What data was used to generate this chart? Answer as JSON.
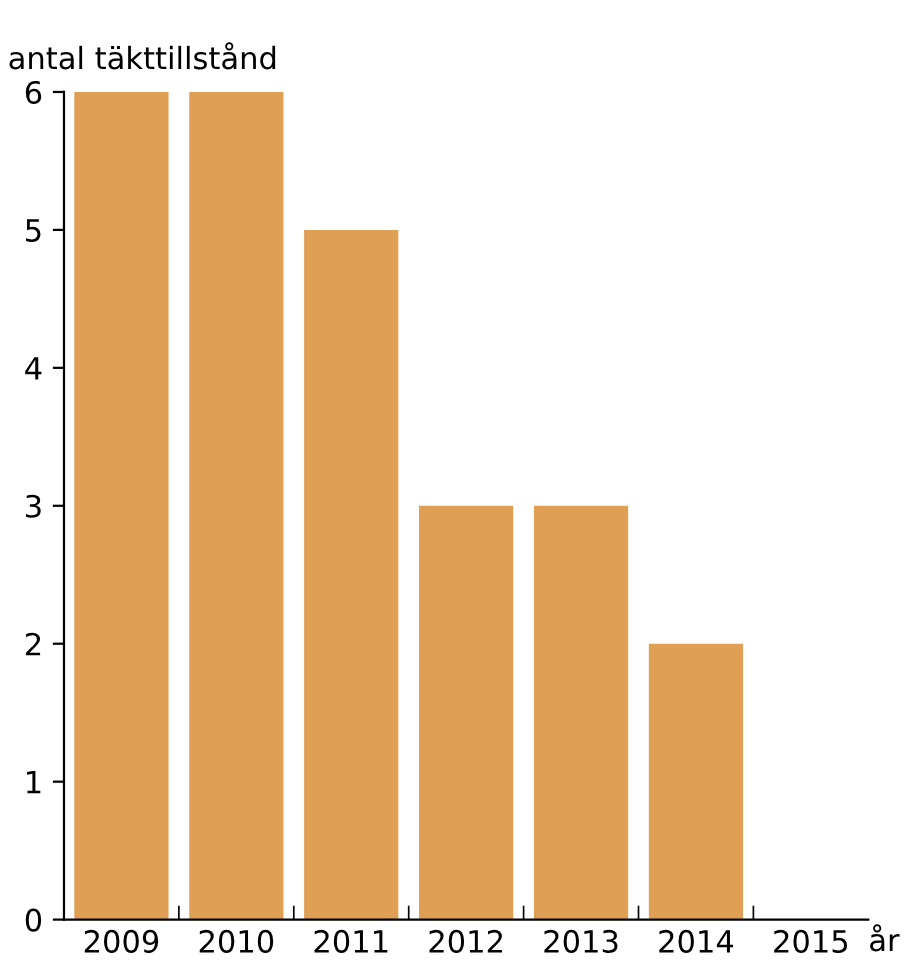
{
  "chart_data": {
    "type": "bar",
    "ylabel": "antal täkttillstånd",
    "xlabel": "år",
    "categories": [
      "2009",
      "2010",
      "2011",
      "2012",
      "2013",
      "2014",
      "2015"
    ],
    "values": [
      6,
      6,
      5,
      3,
      3,
      2,
      0
    ],
    "color": "#dfa055",
    "ylim": [
      0,
      6
    ],
    "yticks": [
      0,
      1,
      2,
      3,
      4,
      5,
      6
    ],
    "grid": false
  }
}
